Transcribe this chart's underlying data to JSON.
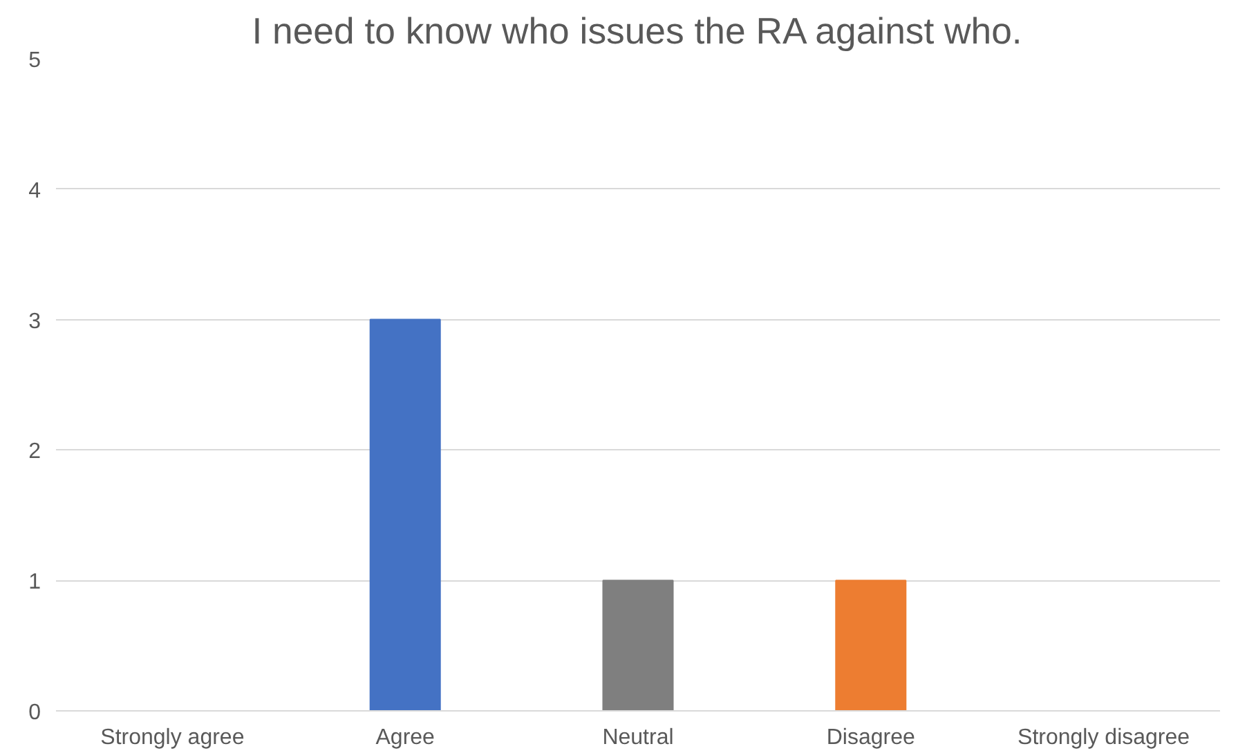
{
  "chart_data": {
    "type": "bar",
    "title": "I need to know who issues the RA against who.",
    "categories": [
      "Strongly agree",
      "Agree",
      "Neutral",
      "Disagree",
      "Strongly disagree"
    ],
    "values": [
      0,
      3,
      1,
      1,
      0
    ],
    "colors": [
      "#5b9bd5",
      "#4472c4",
      "#7f7f7f",
      "#ed7d31",
      "#a5a5a5"
    ],
    "ylim": [
      0,
      5
    ],
    "yticks": [
      0,
      1,
      2,
      3,
      4,
      5
    ],
    "grid": "y"
  }
}
